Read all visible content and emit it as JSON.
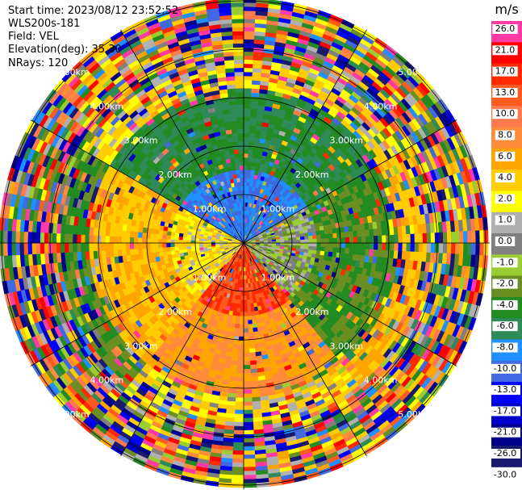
{
  "header": {
    "start_time": "Start time: 2023/08/12 23:52:52",
    "instrument": "WLS200s-181",
    "field": "Field: VEL",
    "elevation": "Elevation(deg): 35.30",
    "nrays": "NRays: 120"
  },
  "chart_data": {
    "type": "heatmap",
    "projection": "polar PPI",
    "field": "VEL",
    "unit": "m/s",
    "range_rings_km": [
      1.0,
      2.0,
      3.0,
      4.0,
      5.0
    ],
    "ring_labels": [
      "1.00km",
      "2.00km",
      "3.00km",
      "4.00km",
      "5.00km"
    ],
    "spokes": 12,
    "colorbar": {
      "title": "m/s",
      "ticks": [
        "26.0",
        "21.0",
        "17.0",
        "13.0",
        "10.0",
        "8.0",
        "6.0",
        "4.0",
        "2.0",
        "1.0",
        "0.0",
        "-1.0",
        "-2.0",
        "-4.0",
        "-6.0",
        "-8.0",
        "-10.0",
        "-13.0",
        "-17.0",
        "-21.0",
        "-26.0",
        "-30.0"
      ],
      "colors": [
        "#ff3aa6",
        "#ff0000",
        "#ff2a00",
        "#ff5a1f",
        "#ff7a4d",
        "#ff8c3a",
        "#ffa500",
        "#ffcc00",
        "#ffff00",
        "#b0b0b0",
        "#808080",
        "#9acd32",
        "#6b8e23",
        "#228b22",
        "#2e8b57",
        "#1e90ff",
        "#4169e1",
        "#0000ff",
        "#0000cd",
        "#00008b",
        "#191970"
      ]
    },
    "sectors": [
      {
        "from_deg": 300,
        "to_deg": 60,
        "inner_value": -10.0,
        "mid_value": -6.0,
        "outer_value": 2.0
      },
      {
        "from_deg": 60,
        "to_deg": 140,
        "inner_value": -1.0,
        "mid_value": -4.0,
        "outer_value": 4.0
      },
      {
        "from_deg": 140,
        "to_deg": 220,
        "inner_value": 13.0,
        "mid_value": 6.0,
        "outer_value": 2.0
      },
      {
        "from_deg": 220,
        "to_deg": 300,
        "inner_value": 2.0,
        "mid_value": 4.0,
        "outer_value": -4.0
      }
    ]
  }
}
